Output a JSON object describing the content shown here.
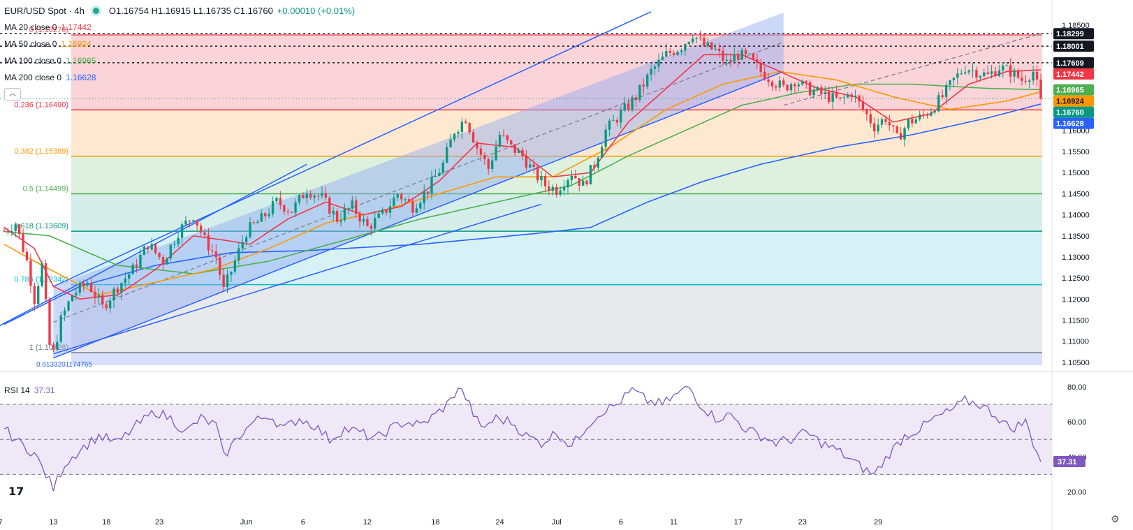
{
  "header": {
    "symbol": "EUR/USD Spot · 4h",
    "ohlc": "O1.16754 H1.16915 L1.16735 C1.16760",
    "change": "+0.00010 (+0.01%)"
  },
  "indicators": [
    {
      "label": "MA 20 close 0",
      "value": "1.17442",
      "color": "#f23645"
    },
    {
      "label": "MA 50 close 0",
      "value": "1.16924",
      "color": "#ff9800"
    },
    {
      "label": "MA 100 close 0",
      "value": "1.16965",
      "color": "#4caf50"
    },
    {
      "label": "MA 200 close 0",
      "value": "1.16628",
      "color": "#2962ff"
    }
  ],
  "rsi_header": {
    "label": "RSI 14",
    "value": "37.31"
  },
  "colors": {
    "up": "#089981",
    "down": "#f23645",
    "ma20": "#f23645",
    "ma50": "#ff9800",
    "ma100": "#4caf50",
    "ma200": "#2962ff",
    "rsi": "#7e57c2",
    "channel": "#2962ff"
  },
  "chart_data": [
    {
      "type": "candlestick",
      "title": "EUR/USD Spot · 4h",
      "x_ticks": [
        "7",
        "13",
        "18",
        "23",
        "Jun",
        "6",
        "12",
        "18",
        "24",
        "Jul",
        "6",
        "11",
        "17",
        "23",
        "29"
      ],
      "y_ticks": [
        "1.18500",
        "1.18000",
        "1.17500",
        "1.17000",
        "1.16500",
        "1.16000",
        "1.15500",
        "1.15000",
        "1.14500",
        "1.14000",
        "1.13500",
        "1.13000",
        "1.12500",
        "1.12000",
        "1.11500",
        "1.11000",
        "1.10500"
      ],
      "ylim": [
        1.1038,
        1.187
      ],
      "price_path": [
        [
          0,
          1.1362
        ],
        [
          3,
          1.138
        ],
        [
          6,
          1.129
        ],
        [
          8,
          1.12
        ],
        [
          10,
          1.128
        ],
        [
          12,
          1.109
        ],
        [
          13,
          1.1072
        ],
        [
          15,
          1.115
        ],
        [
          18,
          1.121
        ],
        [
          22,
          1.124
        ],
        [
          26,
          1.118
        ],
        [
          30,
          1.123
        ],
        [
          34,
          1.127
        ],
        [
          38,
          1.133
        ],
        [
          42,
          1.129
        ],
        [
          46,
          1.136
        ],
        [
          50,
          1.14
        ],
        [
          53,
          1.134
        ],
        [
          56,
          1.13
        ],
        [
          58,
          1.122
        ],
        [
          61,
          1.129
        ],
        [
          64,
          1.136
        ],
        [
          68,
          1.139
        ],
        [
          72,
          1.143
        ],
        [
          76,
          1.141
        ],
        [
          80,
          1.146
        ],
        [
          84,
          1.144
        ],
        [
          88,
          1.139
        ],
        [
          92,
          1.142
        ],
        [
          96,
          1.137
        ],
        [
          100,
          1.14
        ],
        [
          104,
          1.145
        ],
        [
          108,
          1.142
        ],
        [
          112,
          1.146
        ],
        [
          116,
          1.152
        ],
        [
          119,
          1.16
        ],
        [
          122,
          1.163
        ],
        [
          125,
          1.156
        ],
        [
          128,
          1.151
        ],
        [
          131,
          1.159
        ],
        [
          134,
          1.156
        ],
        [
          137,
          1.154
        ],
        [
          140,
          1.15
        ],
        [
          143,
          1.147
        ],
        [
          146,
          1.146
        ],
        [
          150,
          1.15
        ],
        [
          153,
          1.147
        ],
        [
          156,
          1.152
        ],
        [
          159,
          1.16
        ],
        [
          163,
          1.164
        ],
        [
          167,
          1.168
        ],
        [
          171,
          1.174
        ],
        [
          175,
          1.178
        ],
        [
          179,
          1.18
        ],
        [
          182,
          1.183
        ],
        [
          185,
          1.18
        ],
        [
          188,
          1.179
        ],
        [
          191,
          1.176
        ],
        [
          194,
          1.178
        ],
        [
          197,
          1.177
        ],
        [
          200,
          1.174
        ],
        [
          203,
          1.172
        ],
        [
          206,
          1.17
        ],
        [
          209,
          1.172
        ],
        [
          212,
          1.17
        ],
        [
          215,
          1.169
        ],
        [
          218,
          1.168
        ],
        [
          221,
          1.167
        ],
        [
          224,
          1.169
        ],
        [
          227,
          1.165
        ],
        [
          230,
          1.161
        ],
        [
          233,
          1.163
        ],
        [
          236,
          1.158
        ],
        [
          239,
          1.162
        ],
        [
          242,
          1.163
        ],
        [
          245,
          1.165
        ],
        [
          248,
          1.168
        ],
        [
          251,
          1.172
        ],
        [
          254,
          1.175
        ],
        [
          257,
          1.174
        ],
        [
          260,
          1.173
        ],
        [
          263,
          1.175
        ],
        [
          266,
          1.174
        ],
        [
          269,
          1.172
        ],
        [
          272,
          1.174
        ],
        [
          274,
          1.1676
        ]
      ],
      "ma_paths": {
        "ma20": [
          [
            0,
            1.137
          ],
          [
            8,
            1.132
          ],
          [
            13,
            1.123
          ],
          [
            20,
            1.12
          ],
          [
            30,
            1.121
          ],
          [
            40,
            1.127
          ],
          [
            50,
            1.135
          ],
          [
            58,
            1.134
          ],
          [
            65,
            1.133
          ],
          [
            75,
            1.139
          ],
          [
            85,
            1.143
          ],
          [
            95,
            1.14
          ],
          [
            105,
            1.142
          ],
          [
            115,
            1.148
          ],
          [
            125,
            1.157
          ],
          [
            135,
            1.156
          ],
          [
            145,
            1.149
          ],
          [
            155,
            1.15
          ],
          [
            165,
            1.162
          ],
          [
            175,
            1.17
          ],
          [
            185,
            1.178
          ],
          [
            195,
            1.178
          ],
          [
            205,
            1.174
          ],
          [
            215,
            1.17
          ],
          [
            225,
            1.168
          ],
          [
            235,
            1.162
          ],
          [
            245,
            1.164
          ],
          [
            255,
            1.171
          ],
          [
            265,
            1.174
          ],
          [
            274,
            1.1744
          ]
        ],
        "ma50": [
          [
            0,
            1.133
          ],
          [
            10,
            1.128
          ],
          [
            25,
            1.121
          ],
          [
            40,
            1.124
          ],
          [
            55,
            1.127
          ],
          [
            70,
            1.132
          ],
          [
            85,
            1.138
          ],
          [
            100,
            1.141
          ],
          [
            115,
            1.145
          ],
          [
            130,
            1.149
          ],
          [
            145,
            1.149
          ],
          [
            160,
            1.156
          ],
          [
            175,
            1.165
          ],
          [
            190,
            1.171
          ],
          [
            205,
            1.174
          ],
          [
            220,
            1.172
          ],
          [
            235,
            1.168
          ],
          [
            250,
            1.165
          ],
          [
            265,
            1.167
          ],
          [
            274,
            1.1692
          ]
        ],
        "ma100": [
          [
            0,
            1.136
          ],
          [
            12,
            1.135
          ],
          [
            30,
            1.128
          ],
          [
            50,
            1.126
          ],
          [
            70,
            1.129
          ],
          [
            90,
            1.134
          ],
          [
            110,
            1.139
          ],
          [
            130,
            1.143
          ],
          [
            150,
            1.147
          ],
          [
            165,
            1.154
          ],
          [
            180,
            1.16
          ],
          [
            195,
            1.166
          ],
          [
            210,
            1.169
          ],
          [
            225,
            1.171
          ],
          [
            240,
            1.171
          ],
          [
            260,
            1.17
          ],
          [
            274,
            1.1697
          ]
        ],
        "ma200": [
          [
            0,
            1.114
          ],
          [
            20,
            1.123
          ],
          [
            40,
            1.128
          ],
          [
            60,
            1.131
          ],
          [
            80,
            1.1315
          ],
          [
            110,
            1.133
          ],
          [
            140,
            1.1355
          ],
          [
            155,
            1.137
          ],
          [
            170,
            1.143
          ],
          [
            185,
            1.148
          ],
          [
            200,
            1.152
          ],
          [
            220,
            1.156
          ],
          [
            240,
            1.159
          ],
          [
            260,
            1.163
          ],
          [
            274,
            1.1663
          ]
        ]
      },
      "fibonacci": [
        {
          "label": "0 (1.18270)",
          "value": 1.1827,
          "color": "#f7525f"
        },
        {
          "label": "0.236 (1.16490)",
          "value": 1.1649,
          "color": "#f23645"
        },
        {
          "label": "0.382 (1.15389)",
          "value": 1.15389,
          "color": "#ff9800"
        },
        {
          "label": "0.5 (1.14499)",
          "value": 1.14499,
          "color": "#4caf50"
        },
        {
          "label": "0.618 (1.13609)",
          "value": 1.13609,
          "color": "#089981"
        },
        {
          "label": "0.786 (1.12342)",
          "value": 1.12342,
          "color": "#00bcd4"
        },
        {
          "label": "1 (1.10728)",
          "value": 1.10728,
          "color": "#787b86"
        },
        {
          "label": "0.6133201174765",
          "value": 1.1043,
          "color": "#2962ff"
        }
      ],
      "horizontal_levels": [
        1.18299,
        1.18001,
        1.17609
      ],
      "price_labels": [
        {
          "value": "1.18299",
          "level": 1.18299,
          "bg": "#131722",
          "fg": "#ffffff"
        },
        {
          "value": "1.18001",
          "level": 1.18001,
          "bg": "#131722",
          "fg": "#ffffff"
        },
        {
          "value": "1.17609",
          "level": 1.17609,
          "bg": "#131722",
          "fg": "#ffffff"
        },
        {
          "value": "1.17442",
          "level": 1.17442,
          "bg": "#f23645",
          "fg": "#ffffff"
        },
        {
          "value": "1.16965",
          "level": 1.16965,
          "bg": "#4caf50",
          "fg": "#ffffff"
        },
        {
          "value": "1.16924",
          "level": 1.16924,
          "bg": "#ff9800",
          "fg": "#131722"
        },
        {
          "value": "1.16760",
          "level": 1.1676,
          "bg": "#089981",
          "fg": "#ffffff"
        },
        {
          "value": "1.16628",
          "level": 1.16628,
          "bg": "#2962ff",
          "fg": "#ffffff"
        }
      ]
    },
    {
      "type": "line",
      "title": "RSI 14",
      "y_ticks": [
        "80.00",
        "60.00",
        "40.00",
        "20.00"
      ],
      "ylim": [
        13,
        84
      ],
      "bands": [
        70,
        50,
        30
      ],
      "current": "37.31",
      "series": [
        {
          "name": "RSI 14",
          "values": [
            [
              0,
              56
            ],
            [
              4,
              48
            ],
            [
              8,
              42
            ],
            [
              12,
              26
            ],
            [
              13,
              22
            ],
            [
              16,
              36
            ],
            [
              20,
              44
            ],
            [
              25,
              52
            ],
            [
              30,
              48
            ],
            [
              35,
              58
            ],
            [
              40,
              66
            ],
            [
              44,
              62
            ],
            [
              48,
              54
            ],
            [
              52,
              62
            ],
            [
              56,
              58
            ],
            [
              58,
              40
            ],
            [
              62,
              52
            ],
            [
              66,
              60
            ],
            [
              70,
              64
            ],
            [
              74,
              56
            ],
            [
              78,
              62
            ],
            [
              82,
              58
            ],
            [
              86,
              50
            ],
            [
              90,
              56
            ],
            [
              94,
              54
            ],
            [
              98,
              50
            ],
            [
              102,
              56
            ],
            [
              106,
              60
            ],
            [
              110,
              58
            ],
            [
              114,
              64
            ],
            [
              118,
              72
            ],
            [
              120,
              80
            ],
            [
              122,
              74
            ],
            [
              126,
              56
            ],
            [
              130,
              62
            ],
            [
              134,
              60
            ],
            [
              138,
              52
            ],
            [
              142,
              48
            ],
            [
              146,
              54
            ],
            [
              150,
              46
            ],
            [
              154,
              58
            ],
            [
              158,
              66
            ],
            [
              162,
              70
            ],
            [
              166,
              78
            ],
            [
              170,
              72
            ],
            [
              174,
              70
            ],
            [
              178,
              76
            ],
            [
              181,
              80
            ],
            [
              184,
              70
            ],
            [
              188,
              62
            ],
            [
              192,
              64
            ],
            [
              196,
              56
            ],
            [
              200,
              52
            ],
            [
              204,
              48
            ],
            [
              208,
              50
            ],
            [
              212,
              54
            ],
            [
              216,
              48
            ],
            [
              220,
              44
            ],
            [
              224,
              38
            ],
            [
              228,
              32
            ],
            [
              230,
              30
            ],
            [
              234,
              42
            ],
            [
              238,
              52
            ],
            [
              242,
              56
            ],
            [
              246,
              62
            ],
            [
              250,
              66
            ],
            [
              254,
              72
            ],
            [
              258,
              70
            ],
            [
              262,
              64
            ],
            [
              266,
              56
            ],
            [
              270,
              60
            ],
            [
              272,
              48
            ],
            [
              274,
              37.31
            ]
          ]
        }
      ]
    }
  ]
}
